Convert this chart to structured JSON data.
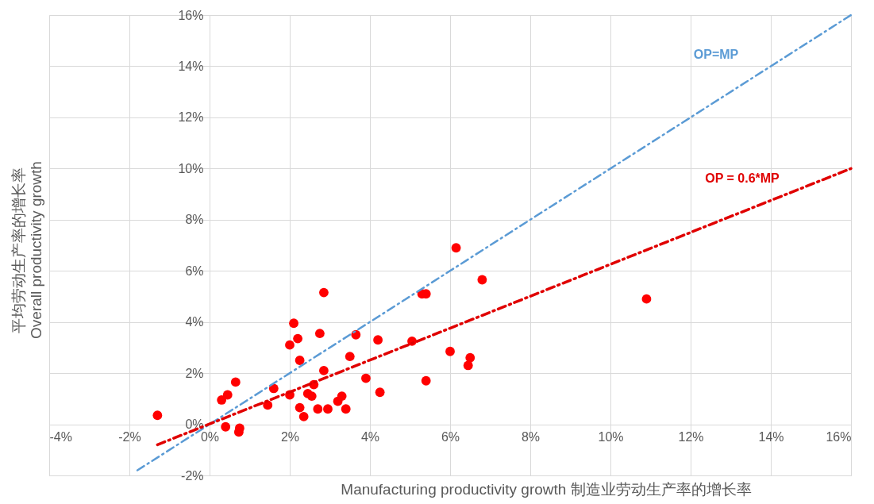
{
  "chart_data": {
    "type": "scatter",
    "xlabel": "Manufacturing productivity growth  制造业劳动生产率的增长率",
    "ylabel": "平均劳动生产率的增长率\nOverall productivity growth",
    "xlim": [
      -4,
      16
    ],
    "ylim": [
      -2,
      16
    ],
    "xticks": [
      {
        "value": -4,
        "label": "-4%"
      },
      {
        "value": -2,
        "label": "-2%"
      },
      {
        "value": 0,
        "label": "0%"
      },
      {
        "value": 2,
        "label": "2%"
      },
      {
        "value": 4,
        "label": "4%"
      },
      {
        "value": 6,
        "label": "6%"
      },
      {
        "value": 8,
        "label": "8%"
      },
      {
        "value": 10,
        "label": "10%"
      },
      {
        "value": 12,
        "label": "12%"
      },
      {
        "value": 14,
        "label": "14%"
      },
      {
        "value": 16,
        "label": "16%"
      }
    ],
    "yticks": [
      {
        "value": -2,
        "label": "-2%"
      },
      {
        "value": 0,
        "label": "0%"
      },
      {
        "value": 2,
        "label": "2%"
      },
      {
        "value": 4,
        "label": "4%"
      },
      {
        "value": 6,
        "label": "6%"
      },
      {
        "value": 8,
        "label": "8%"
      },
      {
        "value": 10,
        "label": "10%"
      },
      {
        "value": 12,
        "label": "12%"
      },
      {
        "value": 14,
        "label": "14%"
      },
      {
        "value": 16,
        "label": "16%"
      }
    ],
    "grid": true,
    "series": [
      {
        "marker": "circle",
        "color": "#ff0000",
        "x": [
          -1.3,
          0.3,
          0.45,
          0.65,
          0.4,
          0.75,
          0.73,
          1.45,
          1.6,
          2.0,
          2.0,
          2.1,
          2.2,
          2.25,
          2.25,
          2.35,
          2.45,
          2.55,
          2.6,
          2.7,
          2.75,
          2.85,
          2.85,
          2.95,
          3.2,
          3.3,
          3.4,
          3.5,
          3.65,
          3.9,
          4.2,
          4.25,
          5.05,
          5.3,
          5.4,
          5.4,
          6.0,
          6.15,
          6.45,
          6.5,
          6.8,
          10.9
        ],
        "values": [
          0.35,
          0.95,
          1.15,
          1.65,
          -0.1,
          -0.15,
          -0.3,
          0.75,
          1.4,
          1.15,
          3.1,
          3.95,
          3.35,
          2.5,
          0.65,
          0.3,
          1.2,
          1.1,
          1.55,
          0.6,
          3.55,
          2.1,
          5.15,
          0.6,
          0.9,
          1.1,
          0.6,
          2.65,
          3.5,
          1.8,
          3.3,
          1.25,
          3.25,
          5.1,
          5.1,
          1.7,
          2.85,
          6.9,
          2.3,
          2.6,
          5.65,
          4.9
        ]
      },
      {
        "type": "line",
        "color": "#5b9bd5",
        "line_style": "dashed",
        "x": [
          -1.8,
          16
        ],
        "values": [
          -1.8,
          16
        ]
      },
      {
        "type": "line",
        "color": "#e00000",
        "line_style": "dashed",
        "x": [
          -1.3,
          16
        ],
        "values": [
          -0.8,
          10
        ]
      }
    ],
    "annotations": [
      "OP=MP",
      "OP = 0.6*MP"
    ]
  }
}
